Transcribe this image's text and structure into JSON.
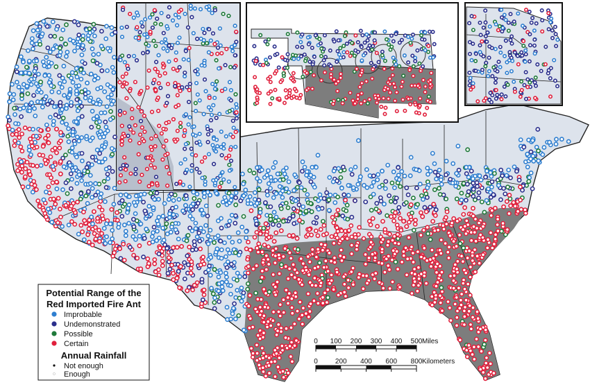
{
  "legend": {
    "title_line1": "Potential Range of the",
    "title_line2": "Red Imported Fire Ant",
    "range_items": [
      {
        "label": "Improbable",
        "color": "#2f7fd0"
      },
      {
        "label": "Undemonstrated",
        "color": "#2b2f8c"
      },
      {
        "label": "Possible",
        "color": "#1f7a3a"
      },
      {
        "label": "Certain",
        "color": "#e0203c"
      }
    ],
    "rainfall_title": "Annual Rainfall",
    "rainfall_items": [
      {
        "label": "Not enough",
        "color": "#111111"
      },
      {
        "label": "Enough",
        "color": "#ffffff"
      }
    ]
  },
  "scale_miles": {
    "ticks": [
      "0",
      "100",
      "200",
      "300",
      "400",
      "500"
    ],
    "unit": "Miles"
  },
  "scale_km": {
    "ticks": [
      "0",
      "200",
      "400",
      "600",
      "800"
    ],
    "unit": "Kilometers"
  },
  "colors": {
    "land": "#dde3ec",
    "suitable_area": "#7d7d7d",
    "border": "#222222"
  }
}
